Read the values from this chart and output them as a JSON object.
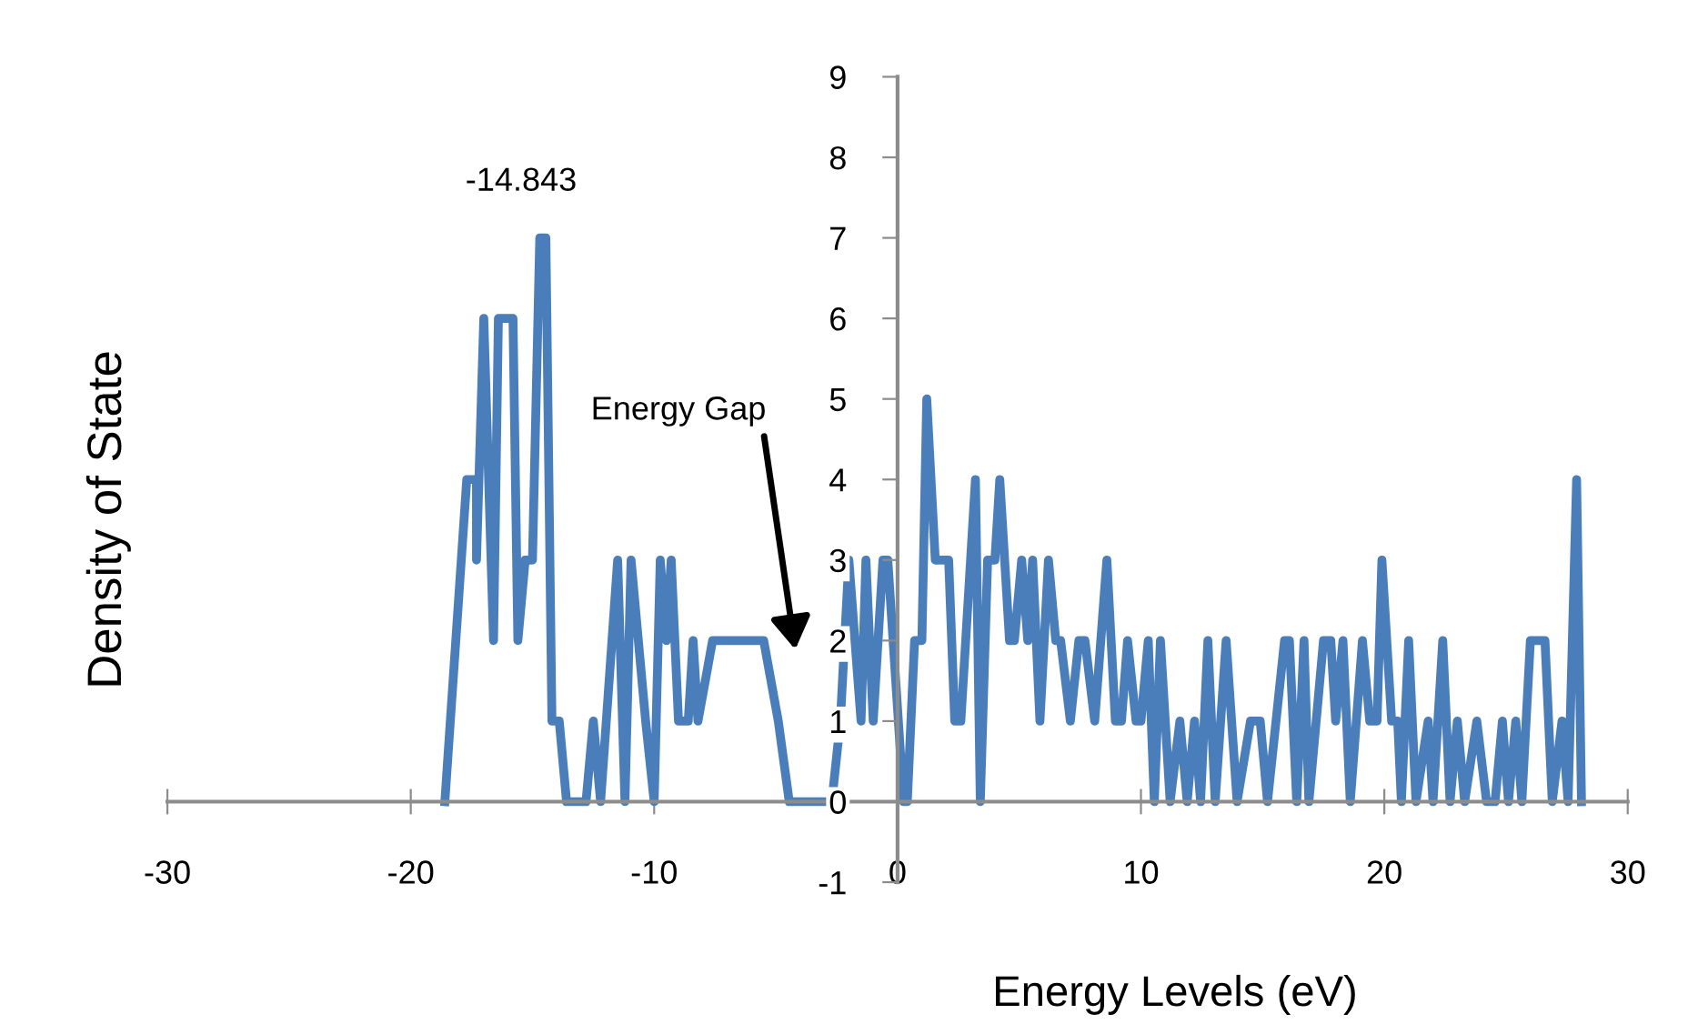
{
  "chart_data": {
    "type": "line",
    "xlabel": "Energy Levels (eV)",
    "ylabel": "Density of State",
    "xlim": [
      -30,
      30
    ],
    "xticks": [
      -30,
      -20,
      -10,
      0,
      10,
      20,
      30
    ],
    "ylim": [
      -1,
      9
    ],
    "yticks": [
      -1,
      0,
      1,
      2,
      3,
      4,
      5,
      6,
      7,
      8,
      9
    ],
    "grid": false,
    "legend": false,
    "marker": "none",
    "line_style": "solid",
    "annotations": [
      {
        "text": "-14.843",
        "x": -14.843,
        "y": 7
      },
      "Energy Gap"
    ],
    "series": [
      {
        "color": "#4a7ebb",
        "x": [
          -18.6,
          -17.7,
          -17.3,
          -17.3,
          -17.0,
          -16.6,
          -16.4,
          -15.8,
          -15.6,
          -15.3,
          -15.0,
          -14.7,
          -14.45,
          -14.2,
          -13.9,
          -13.6,
          -12.8,
          -12.5,
          -12.2,
          -11.5,
          -11.2,
          -10.95,
          -10.35,
          -10.0,
          -9.75,
          -9.5,
          -9.3,
          -9.0,
          -8.6,
          -8.4,
          -8.2,
          -7.6,
          -5.5,
          -4.9,
          -4.45,
          -2.7,
          -2.35,
          -2.0,
          -1.5,
          -1.3,
          -1.0,
          -0.6,
          -0.4,
          0.25,
          0.4,
          0.7,
          1.0,
          1.2,
          1.55,
          2.1,
          2.35,
          2.6,
          3.2,
          3.4,
          3.7,
          4.0,
          4.2,
          4.6,
          4.8,
          5.1,
          5.35,
          5.55,
          5.85,
          6.2,
          6.5,
          6.7,
          7.1,
          7.45,
          7.7,
          8.1,
          8.6,
          8.95,
          9.2,
          9.45,
          9.8,
          10.0,
          10.3,
          10.55,
          10.8,
          11.2,
          11.6,
          11.9,
          12.2,
          12.45,
          12.75,
          13.05,
          13.5,
          13.95,
          14.5,
          14.9,
          15.2,
          15.9,
          16.1,
          16.4,
          16.7,
          16.9,
          17.5,
          17.8,
          18.0,
          18.3,
          18.6,
          19.1,
          19.4,
          19.7,
          19.9,
          20.3,
          20.55,
          20.7,
          21.0,
          21.3,
          21.8,
          22.0,
          22.4,
          22.7,
          23.0,
          23.3,
          23.8,
          24.2,
          24.55,
          24.85,
          25.1,
          25.4,
          25.65,
          26.0,
          26.6,
          26.9,
          27.3,
          27.55,
          27.9,
          28.1
        ],
        "values": [
          0,
          4,
          4,
          3,
          6,
          2,
          6,
          6,
          2,
          3,
          3,
          7,
          7,
          1,
          1,
          0,
          0,
          1,
          0,
          3,
          0,
          3,
          1,
          0,
          3,
          2,
          3,
          1,
          1,
          2,
          1,
          2,
          2,
          1,
          0,
          0,
          1,
          3,
          1,
          3,
          1,
          3,
          3,
          0,
          0,
          2,
          2,
          5,
          3,
          3,
          1,
          1,
          4,
          0,
          3,
          3,
          4,
          2,
          2,
          3,
          2,
          3,
          1,
          3,
          2,
          2,
          1,
          2,
          2,
          1,
          3,
          1,
          1,
          2,
          1,
          1,
          2,
          0,
          2,
          0,
          1,
          0,
          1,
          0,
          2,
          0,
          2,
          0,
          1,
          1,
          0,
          2,
          2,
          0,
          2,
          0,
          2,
          2,
          1,
          2,
          0,
          2,
          1,
          1,
          3,
          1,
          1,
          0,
          2,
          0,
          1,
          0,
          2,
          0,
          1,
          0,
          1,
          0,
          0,
          1,
          0,
          1,
          0,
          2,
          2,
          0,
          1,
          0,
          4,
          0
        ]
      }
    ]
  }
}
